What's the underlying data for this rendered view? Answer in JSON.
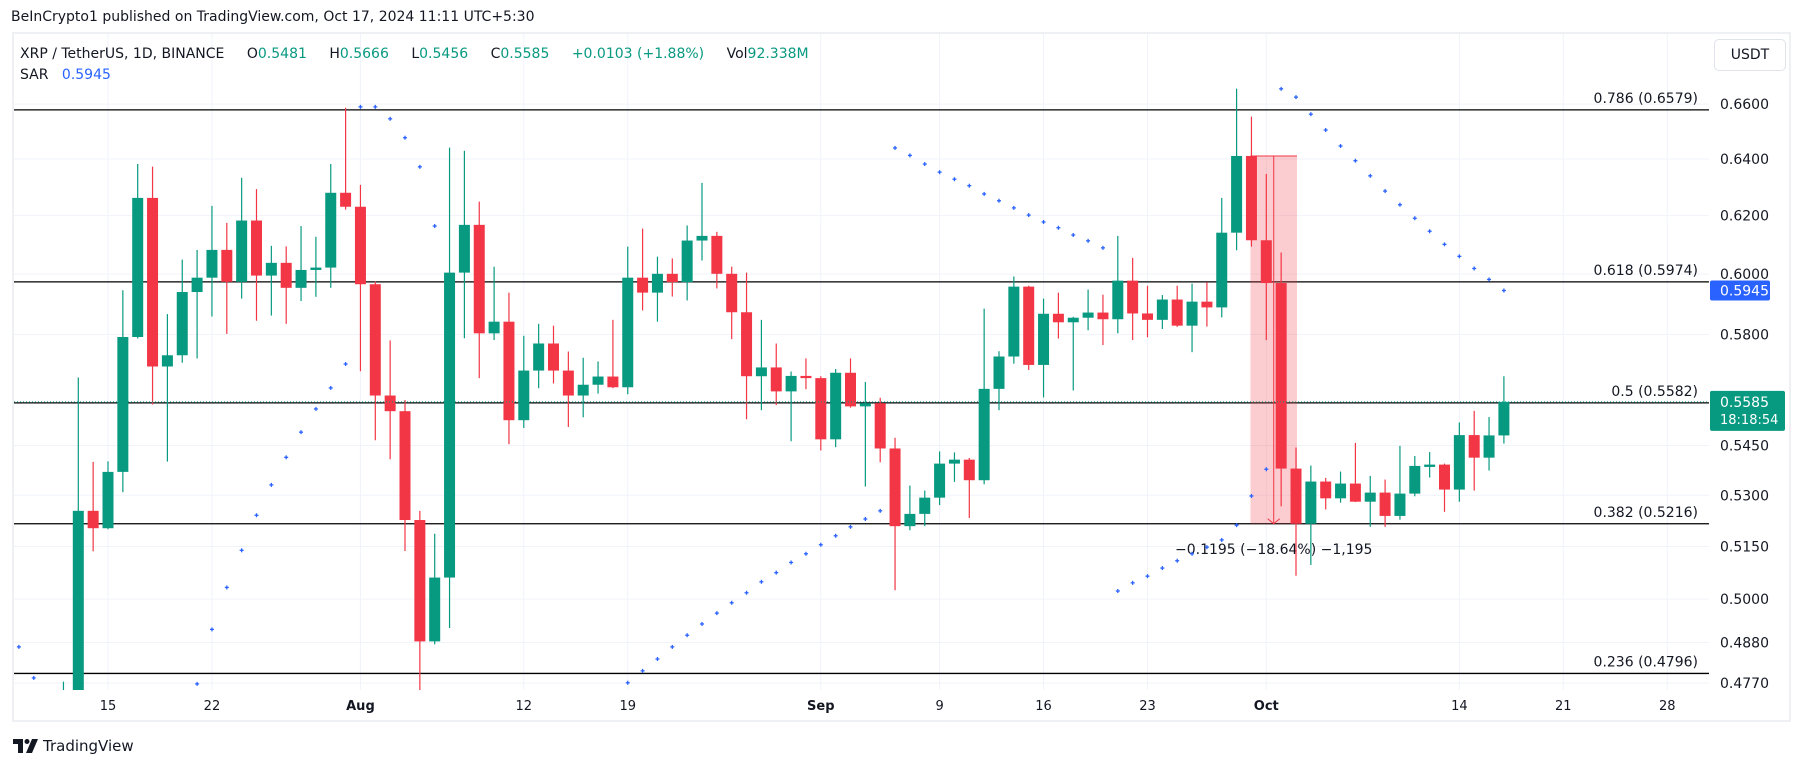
{
  "publish_line": "BeInCrypto1 published on TradingView.com, Oct 17, 2024 11:11 UTC+5:30",
  "legend": {
    "symbol": "XRP / TetherUS, 1D, BINANCE",
    "o_label": "O",
    "o": "0.5481",
    "h_label": "H",
    "h": "0.5666",
    "l_label": "L",
    "l": "0.5456",
    "c_label": "C",
    "c": "0.5585",
    "change": "+0.0103 (+1.88%)",
    "vol_label": "Vol",
    "vol": "92.338M",
    "sar_label": "SAR",
    "sar": "0.5945"
  },
  "currency_button": "USDT",
  "branding": "TradingView",
  "colors": {
    "up": "#089981",
    "down": "#f23645",
    "sar": "#2962ff",
    "fib_line": "#000000",
    "grid": "#f0f3fa",
    "measure_fill": "#f2364540"
  },
  "chart_data": {
    "type": "candlestick",
    "symbol": "XRP / TetherUS",
    "interval": "1D",
    "y_scale": "log",
    "ylim": [
      0.4745,
      0.67
    ],
    "xlim": [
      "2024-07-08",
      "2024-10-31"
    ],
    "grid": true,
    "price_ticks": [
      "0.6600",
      "0.6400",
      "0.6200",
      "0.6000",
      "0.5800",
      "0.5450",
      "0.5300",
      "0.5150",
      "0.5000",
      "0.4880",
      "0.4770"
    ],
    "time_ticks": [
      {
        "label": "15",
        "date": "2024-07-15",
        "bold": false
      },
      {
        "label": "22",
        "date": "2024-07-22",
        "bold": false
      },
      {
        "label": "Aug",
        "date": "2024-08-01",
        "bold": true
      },
      {
        "label": "12",
        "date": "2024-08-12",
        "bold": false
      },
      {
        "label": "19",
        "date": "2024-08-19",
        "bold": false
      },
      {
        "label": "Sep",
        "date": "2024-09-01",
        "bold": true
      },
      {
        "label": "9",
        "date": "2024-09-09",
        "bold": false
      },
      {
        "label": "16",
        "date": "2024-09-16",
        "bold": false
      },
      {
        "label": "23",
        "date": "2024-09-23",
        "bold": false
      },
      {
        "label": "Oct",
        "date": "2024-10-01",
        "bold": true
      },
      {
        "label": "14",
        "date": "2024-10-14",
        "bold": false
      },
      {
        "label": "21",
        "date": "2024-10-21",
        "bold": false
      },
      {
        "label": "28",
        "date": "2024-10-28",
        "bold": false
      }
    ],
    "candles_columns": [
      "date",
      "open",
      "high",
      "low",
      "close"
    ],
    "candles": [
      [
        "2024-07-12",
        0.469,
        0.4774,
        0.46,
        0.472
      ],
      [
        "2024-07-13",
        0.472,
        0.5662,
        0.468,
        0.5254
      ],
      [
        "2024-07-14",
        0.5254,
        0.54,
        0.5136,
        0.5203
      ],
      [
        "2024-07-15",
        0.5203,
        0.5402,
        0.52,
        0.537
      ],
      [
        "2024-07-16",
        0.537,
        0.5946,
        0.5309,
        0.5792
      ],
      [
        "2024-07-17",
        0.5792,
        0.6382,
        0.5787,
        0.6262
      ],
      [
        "2024-07-18",
        0.6262,
        0.6373,
        0.5577,
        0.5697
      ],
      [
        "2024-07-19",
        0.5697,
        0.5867,
        0.5401,
        0.5733
      ],
      [
        "2024-07-20",
        0.5733,
        0.6049,
        0.5709,
        0.594
      ],
      [
        "2024-07-21",
        0.594,
        0.6082,
        0.5723,
        0.5988
      ],
      [
        "2024-07-22",
        0.5988,
        0.6234,
        0.5859,
        0.6082
      ],
      [
        "2024-07-23",
        0.6082,
        0.6175,
        0.5802,
        0.5974
      ],
      [
        "2024-07-24",
        0.5974,
        0.6333,
        0.5918,
        0.6183
      ],
      [
        "2024-07-25",
        0.6183,
        0.6293,
        0.5845,
        0.5995
      ],
      [
        "2024-07-26",
        0.5995,
        0.6096,
        0.5862,
        0.6038
      ],
      [
        "2024-07-27",
        0.6038,
        0.6094,
        0.5835,
        0.5954
      ],
      [
        "2024-07-28",
        0.5954,
        0.6164,
        0.591,
        0.6014
      ],
      [
        "2024-07-29",
        0.6014,
        0.6127,
        0.5924,
        0.6022
      ],
      [
        "2024-07-30",
        0.6022,
        0.6382,
        0.5954,
        0.628
      ],
      [
        "2024-07-31",
        0.628,
        0.6587,
        0.6221,
        0.6231
      ],
      [
        "2024-08-01",
        0.6231,
        0.6308,
        0.5682,
        0.5966
      ],
      [
        "2024-08-02",
        0.5966,
        0.5975,
        0.5466,
        0.5605
      ],
      [
        "2024-08-03",
        0.5605,
        0.5781,
        0.5408,
        0.5556
      ],
      [
        "2024-08-04",
        0.5556,
        0.5591,
        0.5137,
        0.5227
      ],
      [
        "2024-08-05",
        0.5227,
        0.5254,
        0.47,
        0.4883
      ],
      [
        "2024-08-06",
        0.4883,
        0.5187,
        0.4875,
        0.5061
      ],
      [
        "2024-08-07",
        0.5061,
        0.6441,
        0.492,
        0.6005
      ],
      [
        "2024-08-08",
        0.6005,
        0.643,
        0.5788,
        0.6168
      ],
      [
        "2024-08-09",
        0.6168,
        0.6249,
        0.566,
        0.5804
      ],
      [
        "2024-08-10",
        0.5804,
        0.6025,
        0.5782,
        0.5842
      ],
      [
        "2024-08-11",
        0.5842,
        0.5938,
        0.5454,
        0.5528
      ],
      [
        "2024-08-12",
        0.5528,
        0.5796,
        0.5504,
        0.5684
      ],
      [
        "2024-08-13",
        0.5684,
        0.5835,
        0.5628,
        0.5771
      ],
      [
        "2024-08-14",
        0.5771,
        0.5829,
        0.5643,
        0.5684
      ],
      [
        "2024-08-15",
        0.5684,
        0.5745,
        0.5507,
        0.5605
      ],
      [
        "2024-08-16",
        0.5605,
        0.5725,
        0.5537,
        0.5639
      ],
      [
        "2024-08-17",
        0.5639,
        0.5713,
        0.5611,
        0.5665
      ],
      [
        "2024-08-18",
        0.5665,
        0.5848,
        0.5628,
        0.5631
      ],
      [
        "2024-08-19",
        0.5631,
        0.6093,
        0.5609,
        0.5988
      ],
      [
        "2024-08-20",
        0.5988,
        0.6155,
        0.5879,
        0.5938
      ],
      [
        "2024-08-21",
        0.5938,
        0.6059,
        0.5842,
        0.6001
      ],
      [
        "2024-08-22",
        0.6001,
        0.6053,
        0.5925,
        0.5973
      ],
      [
        "2024-08-23",
        0.5973,
        0.6166,
        0.5912,
        0.6114
      ],
      [
        "2024-08-24",
        0.6114,
        0.6315,
        0.6046,
        0.613
      ],
      [
        "2024-08-25",
        0.613,
        0.6144,
        0.5952,
        0.6001
      ],
      [
        "2024-08-26",
        0.6001,
        0.6025,
        0.5785,
        0.5873
      ],
      [
        "2024-08-27",
        0.5873,
        0.6005,
        0.5531,
        0.5666
      ],
      [
        "2024-08-28",
        0.5666,
        0.5848,
        0.5559,
        0.5694
      ],
      [
        "2024-08-29",
        0.5694,
        0.5771,
        0.5575,
        0.5618
      ],
      [
        "2024-08-30",
        0.5618,
        0.5681,
        0.5463,
        0.5667
      ],
      [
        "2024-08-31",
        0.5667,
        0.5723,
        0.5625,
        0.566
      ],
      [
        "2024-09-01",
        0.566,
        0.5666,
        0.5435,
        0.5469
      ],
      [
        "2024-09-02",
        0.5469,
        0.5689,
        0.5445,
        0.5677
      ],
      [
        "2024-09-03",
        0.5677,
        0.5723,
        0.5567,
        0.5571
      ],
      [
        "2024-09-04",
        0.5571,
        0.5648,
        0.5326,
        0.5581
      ],
      [
        "2024-09-05",
        0.5581,
        0.5598,
        0.5399,
        0.5441
      ],
      [
        "2024-09-06",
        0.5441,
        0.5474,
        0.5025,
        0.5209
      ],
      [
        "2024-09-07",
        0.5209,
        0.5329,
        0.5197,
        0.5245
      ],
      [
        "2024-09-08",
        0.5245,
        0.5314,
        0.5209,
        0.5293
      ],
      [
        "2024-09-09",
        0.5293,
        0.5432,
        0.5271,
        0.5395
      ],
      [
        "2024-09-10",
        0.5395,
        0.5429,
        0.534,
        0.5407
      ],
      [
        "2024-09-11",
        0.5407,
        0.5412,
        0.5233,
        0.5345
      ],
      [
        "2024-09-12",
        0.5345,
        0.5885,
        0.5333,
        0.5626
      ],
      [
        "2024-09-13",
        0.5626,
        0.5746,
        0.5559,
        0.5729
      ],
      [
        "2024-09-14",
        0.5729,
        0.5992,
        0.5706,
        0.5958
      ],
      [
        "2024-09-15",
        0.5958,
        0.5961,
        0.5686,
        0.5702
      ],
      [
        "2024-09-16",
        0.5702,
        0.5918,
        0.5599,
        0.5868
      ],
      [
        "2024-09-17",
        0.5868,
        0.5938,
        0.5787,
        0.584
      ],
      [
        "2024-09-18",
        0.584,
        0.5858,
        0.5621,
        0.5855
      ],
      [
        "2024-09-19",
        0.5855,
        0.5948,
        0.5814,
        0.5872
      ],
      [
        "2024-09-20",
        0.5872,
        0.5931,
        0.5766,
        0.585
      ],
      [
        "2024-09-21",
        0.585,
        0.613,
        0.5804,
        0.5978
      ],
      [
        "2024-09-22",
        0.5978,
        0.6055,
        0.5782,
        0.5869
      ],
      [
        "2024-09-23",
        0.5869,
        0.5961,
        0.5791,
        0.5848
      ],
      [
        "2024-09-24",
        0.5848,
        0.593,
        0.5818,
        0.5915
      ],
      [
        "2024-09-25",
        0.5915,
        0.5961,
        0.5825,
        0.5829
      ],
      [
        "2024-09-26",
        0.5829,
        0.5968,
        0.5743,
        0.5908
      ],
      [
        "2024-09-27",
        0.5908,
        0.5973,
        0.5826,
        0.5889
      ],
      [
        "2024-09-28",
        0.5889,
        0.6262,
        0.5856,
        0.6141
      ],
      [
        "2024-09-29",
        0.6141,
        0.6658,
        0.6081,
        0.6411
      ],
      [
        "2024-09-30",
        0.6411,
        0.6554,
        0.6093,
        0.6115
      ],
      [
        "2024-10-01",
        0.6115,
        0.6347,
        0.5782,
        0.597
      ],
      [
        "2024-10-02",
        0.597,
        0.6073,
        0.5267,
        0.538
      ],
      [
        "2024-10-03",
        0.538,
        0.5444,
        0.5066,
        0.5216
      ],
      [
        "2024-10-04",
        0.5216,
        0.5389,
        0.5097,
        0.5341
      ],
      [
        "2024-10-05",
        0.5341,
        0.5352,
        0.5258,
        0.5291
      ],
      [
        "2024-10-06",
        0.5291,
        0.5371,
        0.5278,
        0.5335
      ],
      [
        "2024-10-07",
        0.5335,
        0.5458,
        0.528,
        0.5281
      ],
      [
        "2024-10-08",
        0.5281,
        0.5358,
        0.5207,
        0.5308
      ],
      [
        "2024-10-09",
        0.5308,
        0.5347,
        0.5207,
        0.5239
      ],
      [
        "2024-10-10",
        0.5239,
        0.5449,
        0.5228,
        0.5305
      ],
      [
        "2024-10-11",
        0.5305,
        0.5418,
        0.5297,
        0.5388
      ],
      [
        "2024-10-12",
        0.5385,
        0.543,
        0.5353,
        0.5392
      ],
      [
        "2024-10-13",
        0.5392,
        0.5395,
        0.5251,
        0.5317
      ],
      [
        "2024-10-14",
        0.5317,
        0.5521,
        0.5281,
        0.5482
      ],
      [
        "2024-10-15",
        0.5482,
        0.5557,
        0.5314,
        0.5413
      ],
      [
        "2024-10-16",
        0.5413,
        0.5538,
        0.5374,
        0.5481
      ],
      [
        "2024-10-17",
        0.5481,
        0.5666,
        0.5456,
        0.5585
      ]
    ],
    "sar_name": "SAR",
    "sar": [
      [
        "2024-07-09",
        0.4868
      ],
      [
        "2024-07-10",
        0.4784
      ],
      [
        "2024-07-21",
        0.4768
      ],
      [
        "2024-07-22",
        0.4916
      ],
      [
        "2024-07-23",
        0.5033
      ],
      [
        "2024-07-24",
        0.5139
      ],
      [
        "2024-07-25",
        0.5241
      ],
      [
        "2024-07-26",
        0.5331
      ],
      [
        "2024-07-27",
        0.5414
      ],
      [
        "2024-07-28",
        0.5491
      ],
      [
        "2024-07-29",
        0.5563
      ],
      [
        "2024-07-30",
        0.5629
      ],
      [
        "2024-07-31",
        0.5705
      ],
      [
        "2024-08-01",
        0.659
      ],
      [
        "2024-08-02",
        0.659
      ],
      [
        "2024-08-03",
        0.6546
      ],
      [
        "2024-08-04",
        0.6477
      ],
      [
        "2024-08-05",
        0.6372
      ],
      [
        "2024-08-06",
        0.6164
      ],
      [
        "2024-08-19",
        0.4771
      ],
      [
        "2024-08-20",
        0.4803
      ],
      [
        "2024-08-21",
        0.4835
      ],
      [
        "2024-08-22",
        0.4868
      ],
      [
        "2024-08-23",
        0.49
      ],
      [
        "2024-08-24",
        0.4931
      ],
      [
        "2024-08-25",
        0.4961
      ],
      [
        "2024-08-26",
        0.499
      ],
      [
        "2024-08-27",
        0.5018
      ],
      [
        "2024-08-28",
        0.5049
      ],
      [
        "2024-08-29",
        0.5075
      ],
      [
        "2024-08-30",
        0.5104
      ],
      [
        "2024-08-31",
        0.5129
      ],
      [
        "2024-09-01",
        0.5155
      ],
      [
        "2024-09-02",
        0.5181
      ],
      [
        "2024-09-03",
        0.5207
      ],
      [
        "2024-09-04",
        0.523
      ],
      [
        "2024-09-05",
        0.5254
      ],
      [
        "2024-09-06",
        0.644
      ],
      [
        "2024-09-07",
        0.6413
      ],
      [
        "2024-09-08",
        0.6382
      ],
      [
        "2024-09-09",
        0.6353
      ],
      [
        "2024-09-10",
        0.6328
      ],
      [
        "2024-09-11",
        0.6305
      ],
      [
        "2024-09-12",
        0.6276
      ],
      [
        "2024-09-13",
        0.6252
      ],
      [
        "2024-09-14",
        0.6227
      ],
      [
        "2024-09-15",
        0.6202
      ],
      [
        "2024-09-16",
        0.6178
      ],
      [
        "2024-09-17",
        0.6158
      ],
      [
        "2024-09-18",
        0.6133
      ],
      [
        "2024-09-19",
        0.6113
      ],
      [
        "2024-09-20",
        0.6089
      ],
      [
        "2024-09-21",
        0.5023
      ],
      [
        "2024-09-22",
        0.5046
      ],
      [
        "2024-09-23",
        0.5065
      ],
      [
        "2024-09-24",
        0.5088
      ],
      [
        "2024-09-25",
        0.5109
      ],
      [
        "2024-09-26",
        0.5129
      ],
      [
        "2024-09-27",
        0.5148
      ],
      [
        "2024-09-28",
        0.5169
      ],
      [
        "2024-09-29",
        0.5212
      ],
      [
        "2024-09-30",
        0.5298
      ],
      [
        "2024-10-01",
        0.5378
      ],
      [
        "2024-10-02",
        0.6657
      ],
      [
        "2024-10-03",
        0.6626
      ],
      [
        "2024-10-04",
        0.6563
      ],
      [
        "2024-10-05",
        0.6505
      ],
      [
        "2024-10-06",
        0.6447
      ],
      [
        "2024-10-07",
        0.6394
      ],
      [
        "2024-10-08",
        0.634
      ],
      [
        "2024-10-09",
        0.6286
      ],
      [
        "2024-10-10",
        0.6238
      ],
      [
        "2024-10-11",
        0.6191
      ],
      [
        "2024-10-12",
        0.6146
      ],
      [
        "2024-10-13",
        0.6101
      ],
      [
        "2024-10-14",
        0.606
      ],
      [
        "2024-10-15",
        0.6019
      ],
      [
        "2024-10-16",
        0.5982
      ],
      [
        "2024-10-17",
        0.5945
      ]
    ],
    "fib_levels": [
      {
        "ratio": 0.786,
        "price": 0.6579,
        "label": "0.786 (0.6579)"
      },
      {
        "ratio": 0.618,
        "price": 0.5974,
        "label": "0.618 (0.5974)"
      },
      {
        "ratio": 0.5,
        "price": 0.5582,
        "label": "0.5 (0.5582)"
      },
      {
        "ratio": 0.382,
        "price": 0.5216,
        "label": "0.382 (0.5216)"
      },
      {
        "ratio": 0.236,
        "price": 0.4796,
        "label": "0.236 (0.4796)"
      }
    ],
    "measure": {
      "from_date": "2024-09-30",
      "to_date": "2024-10-03",
      "from_price": 0.6411,
      "to_price": 0.5216,
      "label": "−0.1195 (−18.64%) −1,195"
    },
    "sar_tag": {
      "value": 0.5945,
      "label": "0.5945"
    },
    "last_price_tag": {
      "value": 0.5585,
      "label": "0.5585",
      "countdown": "18:18:54"
    }
  }
}
